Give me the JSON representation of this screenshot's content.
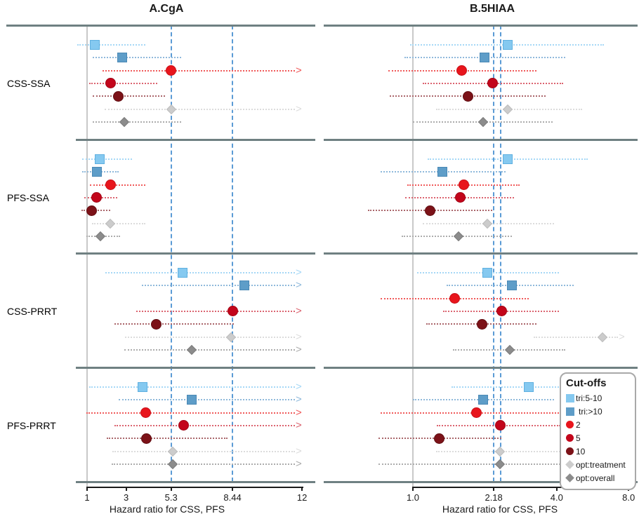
{
  "chart_data": {
    "type": "scatter",
    "subtype": "forest-plot",
    "xlabel_shared": "Hazard ratio for CSS, PFS",
    "panels": [
      {
        "id": "A",
        "title": "A.CgA",
        "xlabel": "Hazard ratio for CSS, PFS",
        "scale": "linear",
        "baseline": 1,
        "reference_lines": [
          5.3,
          8.44
        ],
        "ticks": [
          {
            "value": 1,
            "label": "1"
          },
          {
            "value": 3,
            "label": "3"
          },
          {
            "value": 5.3,
            "label": "5.3"
          },
          {
            "value": 8.44,
            "label": "8.44"
          },
          {
            "value": 12,
            "label": "12"
          }
        ],
        "groups": [
          {
            "label": "CSS-SSA",
            "rows": [
              {
                "series": "tri:5-10",
                "hr": 1.4,
                "lo": 0.5,
                "hi": 4.0,
                "arrow": false
              },
              {
                "series": "tri:>10",
                "hr": 2.8,
                "lo": 1.3,
                "hi": 5.8,
                "arrow": false
              },
              {
                "series": "2",
                "hr": 5.3,
                "lo": 1.8,
                "hi": 12,
                "arrow": true
              },
              {
                "series": "5",
                "hr": 2.2,
                "lo": 1.1,
                "hi": 4.6,
                "arrow": false
              },
              {
                "series": "10",
                "hr": 2.6,
                "lo": 1.3,
                "hi": 5.0,
                "arrow": false
              },
              {
                "series": "opt:treatment",
                "hr": 5.3,
                "lo": 1.9,
                "hi": 12,
                "arrow": true
              },
              {
                "series": "opt:overall",
                "hr": 2.9,
                "lo": 1.3,
                "hi": 5.8,
                "arrow": false
              }
            ]
          },
          {
            "label": "PFS-SSA",
            "rows": [
              {
                "series": "tri:5-10",
                "hr": 1.65,
                "lo": 0.75,
                "hi": 3.3,
                "arrow": false
              },
              {
                "series": "tri:>10",
                "hr": 1.5,
                "lo": 0.75,
                "hi": 2.6,
                "arrow": false
              },
              {
                "series": "2",
                "hr": 2.2,
                "lo": 1.15,
                "hi": 4.0,
                "arrow": false
              },
              {
                "series": "5",
                "hr": 1.5,
                "lo": 0.85,
                "hi": 2.55,
                "arrow": false
              },
              {
                "series": "10",
                "hr": 1.25,
                "lo": 0.7,
                "hi": 2.2,
                "arrow": false
              },
              {
                "series": "opt:treatment",
                "hr": 2.2,
                "lo": 1.25,
                "hi": 4.0,
                "arrow": false
              },
              {
                "series": "opt:overall",
                "hr": 1.7,
                "lo": 0.95,
                "hi": 2.7,
                "arrow": false
              }
            ]
          },
          {
            "label": "CSS-PRRT",
            "rows": [
              {
                "series": "tri:5-10",
                "hr": 5.9,
                "lo": 1.95,
                "hi": 12,
                "arrow": true
              },
              {
                "series": "tri:>10",
                "hr": 9.05,
                "lo": 3.8,
                "hi": 12,
                "arrow": true
              },
              {
                "series": "2",
                "hr": null,
                "lo": null,
                "hi": null,
                "arrow": false
              },
              {
                "series": "5",
                "hr": 8.44,
                "lo": 3.5,
                "hi": 12,
                "arrow": true
              },
              {
                "series": "10",
                "hr": 4.55,
                "lo": 2.4,
                "hi": 8.5,
                "arrow": false
              },
              {
                "series": "opt:treatment",
                "hr": 8.35,
                "lo": 2.95,
                "hi": 12,
                "arrow": true
              },
              {
                "series": "opt:overall",
                "hr": 6.35,
                "lo": 2.9,
                "hi": 12,
                "arrow": true
              }
            ]
          },
          {
            "label": "PFS-PRRT",
            "rows": [
              {
                "series": "tri:5-10",
                "hr": 3.85,
                "lo": 1.1,
                "hi": 12,
                "arrow": true
              },
              {
                "series": "tri:>10",
                "hr": 6.35,
                "lo": 2.6,
                "hi": 12,
                "arrow": true
              },
              {
                "series": "2",
                "hr": 4.0,
                "lo": 0.95,
                "hi": 12,
                "arrow": true
              },
              {
                "series": "5",
                "hr": 5.95,
                "lo": 2.4,
                "hi": 12,
                "arrow": true
              },
              {
                "series": "10",
                "hr": 4.05,
                "lo": 2.0,
                "hi": 8.2,
                "arrow": false
              },
              {
                "series": "opt:treatment",
                "hr": 5.4,
                "lo": 2.3,
                "hi": 12,
                "arrow": true
              },
              {
                "series": "opt:overall",
                "hr": 5.4,
                "lo": 2.25,
                "hi": 12,
                "arrow": true
              }
            ]
          }
        ]
      },
      {
        "id": "B",
        "title": "B.5HIAA",
        "xlabel": "Hazard ratio for CSS, PFS",
        "scale": "log",
        "baseline": 1,
        "reference_lines": [
          2.18,
          2.33
        ],
        "ticks": [
          {
            "value": 1.0,
            "label": "1.0"
          },
          {
            "value": 2.18,
            "label": "2.18"
          },
          {
            "value": 4.0,
            "label": "4.0"
          },
          {
            "value": 8.0,
            "label": "8.0"
          }
        ],
        "groups": [
          {
            "label": "CSS-SSA",
            "rows": [
              {
                "series": "tri:5-10",
                "hr": 2.5,
                "lo": 0.97,
                "hi": 6.3,
                "arrow": false
              },
              {
                "series": "tri:>10",
                "hr": 2.0,
                "lo": 0.92,
                "hi": 4.35,
                "arrow": false
              },
              {
                "series": "2",
                "hr": 1.6,
                "lo": 0.79,
                "hi": 3.3,
                "arrow": false
              },
              {
                "series": "5",
                "hr": 2.16,
                "lo": 1.1,
                "hi": 4.25,
                "arrow": false
              },
              {
                "series": "10",
                "hr": 1.7,
                "lo": 0.8,
                "hi": 3.6,
                "arrow": false
              },
              {
                "series": "opt:treatment",
                "hr": 2.5,
                "lo": 1.25,
                "hi": 5.1,
                "arrow": false
              },
              {
                "series": "opt:overall",
                "hr": 1.97,
                "lo": 1.0,
                "hi": 3.85,
                "arrow": false
              }
            ]
          },
          {
            "label": "PFS-SSA",
            "rows": [
              {
                "series": "tri:5-10",
                "hr": 2.5,
                "lo": 1.15,
                "hi": 5.4,
                "arrow": false
              },
              {
                "series": "tri:>10",
                "hr": 1.33,
                "lo": 0.73,
                "hi": 2.45,
                "arrow": false
              },
              {
                "series": "2",
                "hr": 1.63,
                "lo": 0.95,
                "hi": 2.8,
                "arrow": false
              },
              {
                "series": "5",
                "hr": 1.58,
                "lo": 0.93,
                "hi": 2.65,
                "arrow": false
              },
              {
                "series": "10",
                "hr": 1.18,
                "lo": 0.65,
                "hi": 2.15,
                "arrow": false
              },
              {
                "series": "opt:treatment",
                "hr": 2.05,
                "lo": 1.1,
                "hi": 3.9,
                "arrow": false
              },
              {
                "series": "opt:overall",
                "hr": 1.55,
                "lo": 0.9,
                "hi": 2.6,
                "arrow": false
              }
            ]
          },
          {
            "label": "CSS-PRRT",
            "rows": [
              {
                "series": "tri:5-10",
                "hr": 2.05,
                "lo": 1.04,
                "hi": 4.1,
                "arrow": false
              },
              {
                "series": "tri:>10",
                "hr": 2.6,
                "lo": 1.38,
                "hi": 4.7,
                "arrow": false
              },
              {
                "series": "2",
                "hr": 1.5,
                "lo": 0.73,
                "hi": 3.05,
                "arrow": false
              },
              {
                "series": "5",
                "hr": 2.35,
                "lo": 1.34,
                "hi": 4.1,
                "arrow": false
              },
              {
                "series": "10",
                "hr": 1.95,
                "lo": 1.14,
                "hi": 3.3,
                "arrow": false
              },
              {
                "series": "opt:treatment",
                "hr": 6.2,
                "lo": 3.2,
                "hi": 8.0,
                "arrow": true
              },
              {
                "series": "opt:overall",
                "hr": 2.55,
                "lo": 1.47,
                "hi": 4.35,
                "arrow": false
              }
            ]
          },
          {
            "label": "PFS-PRRT",
            "rows": [
              {
                "series": "tri:5-10",
                "hr": 3.05,
                "lo": 1.45,
                "hi": 4.3,
                "arrow": false
              },
              {
                "series": "tri:>10",
                "hr": 1.97,
                "lo": 1.0,
                "hi": 3.9,
                "arrow": false
              },
              {
                "series": "2",
                "hr": 1.85,
                "lo": 0.73,
                "hi": 4.2,
                "arrow": false
              },
              {
                "series": "5",
                "hr": 2.33,
                "lo": 1.26,
                "hi": 4.15,
                "arrow": false
              },
              {
                "series": "10",
                "hr": 1.29,
                "lo": 0.72,
                "hi": 2.35,
                "arrow": false
              },
              {
                "series": "opt:treatment",
                "hr": 2.32,
                "lo": 1.25,
                "hi": 4.15,
                "arrow": false
              },
              {
                "series": "opt:overall",
                "hr": 2.32,
                "lo": 0.72,
                "hi": 4.15,
                "arrow": false
              }
            ]
          }
        ]
      }
    ],
    "legend": {
      "title": "Cut-offs",
      "position": "bottom-right-overlay",
      "items": [
        {
          "label": "tri:5-10",
          "shape": "square",
          "color": "#85c9f0"
        },
        {
          "label": "tri:>10",
          "shape": "square",
          "color": "#5e9dc8"
        },
        {
          "label": "2",
          "shape": "circle",
          "color": "#e8151c"
        },
        {
          "label": "5",
          "shape": "circle",
          "color": "#c3051b"
        },
        {
          "label": "10",
          "shape": "circle",
          "color": "#7c1218"
        },
        {
          "label": "opt:treatment",
          "shape": "diamond",
          "color": "#cccccc"
        },
        {
          "label": "opt:overall",
          "shape": "diamond",
          "color": "#8c8c8c"
        }
      ]
    },
    "series_styles": {
      "tri:5-10": {
        "shape": "square",
        "fill": "#85c9f0",
        "edge": "#5fb0e0",
        "ci": "#a6d8f6"
      },
      "tri:>10": {
        "shape": "square",
        "fill": "#5e9dc8",
        "edge": "#4a88b5",
        "ci": "#8fb9db"
      },
      "2": {
        "shape": "circle",
        "fill": "#e8151c",
        "edge": "#c81018",
        "ci": "#f05a5a"
      },
      "5": {
        "shape": "circle",
        "fill": "#c3051b",
        "edge": "#a00415",
        "ci": "#db6470"
      },
      "10": {
        "shape": "circle",
        "fill": "#7c1218",
        "edge": "#610e12",
        "ci": "#aa666b"
      },
      "opt:treatment": {
        "shape": "diamond",
        "fill": "#cccccc",
        "edge": "#bdbdbd",
        "ci": "#dcdcdc"
      },
      "opt:overall": {
        "shape": "diamond",
        "fill": "#8c8c8c",
        "edge": "#7c7c7c",
        "ci": "#acacac"
      }
    },
    "colors": {
      "reference_line": "#5b9bd5",
      "baseline": "#c9c9c9",
      "separator": "#6f8082",
      "axis": "#1a1a1a",
      "text": "#000000"
    },
    "layout_hints": {
      "grid": "off",
      "panel_A_axis_range": [
        1,
        12
      ],
      "panel_B_axis_range": [
        1,
        8
      ],
      "group_separators": true
    }
  }
}
